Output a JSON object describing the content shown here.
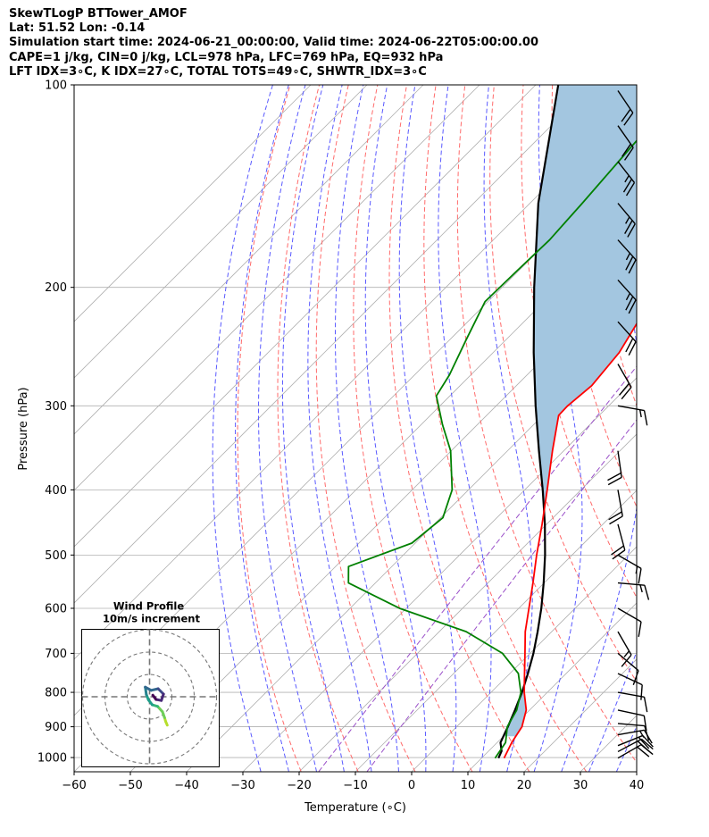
{
  "header": {
    "line1": "SkewTLogP BTTower_AMOF",
    "line2": "Lat: 51.52   Lon: -0.14",
    "line3": "Simulation start time: 2024-06-21_00:00:00, Valid time: 2024-06-22T05:00:00.00",
    "line4": "CAPE=1 j/kg, CIN=0 j/kg, LCL=978 hPa, LFC=769 hPa, EQ=932 hPa",
    "line5": "LFT IDX=3∘C, K IDX=27∘C, TOTAL TOTS=49∘C, SHWTR_IDX=3∘C"
  },
  "colors": {
    "temperature": "#ff0000",
    "dewpoint": "#008000",
    "parcel": "#000000",
    "cape_fill": "#a3c6e0",
    "dry_adiabat": "#ff6b6b",
    "moist_adiabat": "#5a5aff",
    "isotherm": "#b0b0b0",
    "mixing_ratio": "#9a4fc9"
  },
  "chart_data": {
    "type": "line",
    "title": "",
    "xlabel": "Temperature (∘C)",
    "ylabel": "Pressure (hPa)",
    "xlim": [
      -60,
      40
    ],
    "ylim": [
      1050,
      100
    ],
    "y_scale": "log",
    "skew": true,
    "grid": true,
    "x_ticks": [
      -60,
      -50,
      -40,
      -30,
      -20,
      -10,
      0,
      10,
      20,
      30,
      40
    ],
    "y_ticks": [
      1000,
      900,
      800,
      700,
      600,
      500,
      400,
      300,
      200,
      100
    ],
    "series": [
      {
        "role": "temperature",
        "points": [
          {
            "p": 1002,
            "t": 14.0
          },
          {
            "p": 950,
            "t": 12.6
          },
          {
            "p": 900,
            "t": 11.6
          },
          {
            "p": 850,
            "t": 9.4
          },
          {
            "p": 800,
            "t": 5.9
          },
          {
            "p": 750,
            "t": 2.6
          },
          {
            "p": 700,
            "t": -0.9
          },
          {
            "p": 650,
            "t": -4.7
          },
          {
            "p": 600,
            "t": -8.2
          },
          {
            "p": 550,
            "t": -12.0
          },
          {
            "p": 500,
            "t": -16.3
          },
          {
            "p": 450,
            "t": -20.8
          },
          {
            "p": 400,
            "t": -26.0
          },
          {
            "p": 350,
            "t": -32.0
          },
          {
            "p": 310,
            "t": -37.2
          },
          {
            "p": 300,
            "t": -37.3
          },
          {
            "p": 280,
            "t": -36.6
          },
          {
            "p": 250,
            "t": -37.6
          },
          {
            "p": 220,
            "t": -40.2
          },
          {
            "p": 200,
            "t": -43.2
          },
          {
            "p": 180,
            "t": -45.8
          },
          {
            "p": 150,
            "t": -51.3
          },
          {
            "p": 120,
            "t": -58.0
          },
          {
            "p": 100,
            "t": -64.3
          }
        ]
      },
      {
        "role": "dewpoint",
        "points": [
          {
            "p": 1002,
            "t": 12.4
          },
          {
            "p": 950,
            "t": 11.5
          },
          {
            "p": 900,
            "t": 9.0
          },
          {
            "p": 850,
            "t": 7.7
          },
          {
            "p": 800,
            "t": 5.3
          },
          {
            "p": 750,
            "t": 1.5
          },
          {
            "p": 700,
            "t": -4.9
          },
          {
            "p": 650,
            "t": -15.2
          },
          {
            "p": 600,
            "t": -31.2
          },
          {
            "p": 550,
            "t": -44.8
          },
          {
            "p": 520,
            "t": -47.7
          },
          {
            "p": 480,
            "t": -40.6
          },
          {
            "p": 440,
            "t": -39.6
          },
          {
            "p": 400,
            "t": -42.9
          },
          {
            "p": 350,
            "t": -50.1
          },
          {
            "p": 320,
            "t": -56.2
          },
          {
            "p": 290,
            "t": -62.4
          },
          {
            "p": 270,
            "t": -63.8
          },
          {
            "p": 240,
            "t": -67.0
          },
          {
            "p": 210,
            "t": -70.5
          },
          {
            "p": 190,
            "t": -70.3
          },
          {
            "p": 170,
            "t": -70.0
          },
          {
            "p": 150,
            "t": -70.7
          },
          {
            "p": 120,
            "t": -72.2
          },
          {
            "p": 100,
            "t": -75.8
          }
        ]
      },
      {
        "role": "parcel",
        "points": [
          {
            "p": 1002,
            "t": 13.0
          },
          {
            "p": 978,
            "t": 12.3
          },
          {
            "p": 950,
            "t": 10.6
          },
          {
            "p": 900,
            "t": 9.1
          },
          {
            "p": 850,
            "t": 7.4
          },
          {
            "p": 800,
            "t": 5.5
          },
          {
            "p": 750,
            "t": 3.2
          },
          {
            "p": 700,
            "t": 0.6
          },
          {
            "p": 650,
            "t": -2.5
          },
          {
            "p": 600,
            "t": -6.0
          },
          {
            "p": 550,
            "t": -10.1
          },
          {
            "p": 500,
            "t": -14.8
          },
          {
            "p": 450,
            "t": -20.3
          },
          {
            "p": 400,
            "t": -26.8
          },
          {
            "p": 350,
            "t": -34.4
          },
          {
            "p": 300,
            "t": -43.0
          },
          {
            "p": 250,
            "t": -52.8
          },
          {
            "p": 200,
            "t": -64.3
          },
          {
            "p": 150,
            "t": -78.5
          },
          {
            "p": 100,
            "t": -96.0
          }
        ]
      }
    ],
    "dry_adiabats_theta_K": [
      250,
      260,
      270,
      280,
      290,
      300,
      310,
      320,
      330,
      340,
      350,
      360,
      370,
      380,
      390,
      400,
      410,
      420,
      430,
      440,
      450,
      460,
      470
    ],
    "moist_adiabats_T1000_C": [
      -30,
      -25,
      -20,
      -15,
      -10,
      -5,
      0,
      5,
      10,
      15,
      20,
      25,
      30,
      35,
      40,
      45
    ],
    "mixing_ratio_lines_gkg": [
      0.001,
      0.002
    ],
    "wind_barbs": [
      {
        "p": 1002,
        "speed_kt": 21,
        "dir_deg": 240
      },
      {
        "p": 980,
        "speed_kt": 20,
        "dir_deg": 242
      },
      {
        "p": 960,
        "speed_kt": 18,
        "dir_deg": 248
      },
      {
        "p": 925,
        "speed_kt": 15,
        "dir_deg": 260
      },
      {
        "p": 890,
        "speed_kt": 12,
        "dir_deg": 275
      },
      {
        "p": 850,
        "speed_kt": 10,
        "dir_deg": 282
      },
      {
        "p": 800,
        "speed_kt": 8,
        "dir_deg": 280
      },
      {
        "p": 750,
        "speed_kt": 10,
        "dir_deg": 295
      },
      {
        "p": 700,
        "speed_kt": 12,
        "dir_deg": 310
      },
      {
        "p": 650,
        "speed_kt": 14,
        "dir_deg": 330
      },
      {
        "p": 600,
        "speed_kt": 12,
        "dir_deg": 300
      },
      {
        "p": 550,
        "speed_kt": 14,
        "dir_deg": 275
      },
      {
        "p": 500,
        "speed_kt": 17,
        "dir_deg": 300
      },
      {
        "p": 450,
        "speed_kt": 18,
        "dir_deg": 345
      },
      {
        "p": 400,
        "speed_kt": 20,
        "dir_deg": 350
      },
      {
        "p": 350,
        "speed_kt": 20,
        "dir_deg": 352
      },
      {
        "p": 300,
        "speed_kt": 15,
        "dir_deg": 280
      },
      {
        "p": 260,
        "speed_kt": 21,
        "dir_deg": 330
      },
      {
        "p": 225,
        "speed_kt": 19,
        "dir_deg": 318
      },
      {
        "p": 195,
        "speed_kt": 23,
        "dir_deg": 318
      },
      {
        "p": 170,
        "speed_kt": 24,
        "dir_deg": 318
      },
      {
        "p": 150,
        "speed_kt": 24,
        "dir_deg": 320
      },
      {
        "p": 130,
        "speed_kt": 23,
        "dir_deg": 322
      },
      {
        "p": 115,
        "speed_kt": 22,
        "dir_deg": 325
      },
      {
        "p": 102,
        "speed_kt": 22,
        "dir_deg": 326
      }
    ],
    "hodograph": {
      "title": "Wind Profile",
      "subtitle": "10m/s increment",
      "ring_step_ms": 10,
      "rings": 3,
      "points": [
        {
          "u": 3.3,
          "v": -5.3
        },
        {
          "u": 3.0,
          "v": -4.6
        },
        {
          "u": 2.8,
          "v": -3.9
        },
        {
          "u": 2.4,
          "v": -2.8
        },
        {
          "u": 1.5,
          "v": -1.8
        },
        {
          "u": 0.5,
          "v": -1.5
        },
        {
          "u": -0.2,
          "v": -0.6
        },
        {
          "u": -0.6,
          "v": 0.4
        },
        {
          "u": -0.8,
          "v": 1.8
        },
        {
          "u": 0.3,
          "v": 1.2
        },
        {
          "u": 1.6,
          "v": 1.5
        },
        {
          "u": 2.6,
          "v": 0.5
        },
        {
          "u": 2.2,
          "v": -0.7
        },
        {
          "u": 1.2,
          "v": -0.5
        },
        {
          "u": 0.6,
          "v": 0.3
        }
      ]
    }
  }
}
